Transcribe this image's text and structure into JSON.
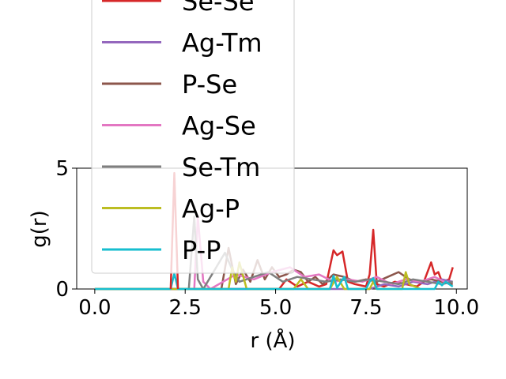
{
  "chart_data": {
    "type": "line",
    "title": "",
    "xlabel": "r (Å)",
    "ylabel": "g(r)",
    "xlim": [
      -0.5,
      10.3
    ],
    "ylim": [
      0,
      5
    ],
    "xticks": [
      "0.0",
      "2.5",
      "5.0",
      "7.5",
      "10.0"
    ],
    "xtick_values": [
      0,
      2.5,
      5,
      7.5,
      10
    ],
    "yticks": [
      "0",
      "5"
    ],
    "ytick_values": [
      0,
      5
    ],
    "grid": false,
    "legend_position": "upper-left (overflowing above plot)",
    "series": [
      {
        "name": "Se-Se",
        "color": "#d62728",
        "x": [
          0,
          5.1,
          5.3,
          5.6,
          5.9,
          6.2,
          6.4,
          6.6,
          6.7,
          6.85,
          7.0,
          7.2,
          7.5,
          7.6,
          7.7,
          7.8,
          8.0,
          8.3,
          8.6,
          8.9,
          9.1,
          9.3,
          9.4,
          9.5,
          9.6,
          9.8,
          9.9
        ],
        "y": [
          0,
          0,
          0.4,
          0.1,
          0.3,
          0.1,
          0.2,
          1.6,
          1.4,
          1.55,
          0.3,
          0.2,
          0.1,
          0.6,
          2.45,
          0.2,
          0.1,
          0.3,
          0.2,
          0.1,
          0.3,
          1.1,
          0.6,
          0.7,
          0.3,
          0.4,
          0.9
        ]
      },
      {
        "name": "Ag-Tm",
        "color": "#9467bd",
        "x": [
          0,
          7.6,
          8.0,
          8.4,
          8.8,
          9.2,
          9.6,
          9.9
        ],
        "y": [
          0,
          0,
          0.2,
          0.1,
          0.3,
          0.2,
          0.4,
          0.3
        ]
      },
      {
        "name": "P-Se",
        "color": "#8c564b",
        "x": [
          0,
          3.5,
          3.7,
          3.9,
          4.1,
          4.3,
          4.5,
          4.7,
          4.9,
          5.1,
          5.3,
          5.5,
          5.7,
          5.9,
          6.1,
          6.3,
          6.6,
          6.9,
          7.2,
          7.5,
          7.8,
          8.1,
          8.4,
          8.7,
          9.0,
          9.3,
          9.6,
          9.9
        ],
        "y": [
          0,
          0,
          1.7,
          0.2,
          0.8,
          0.3,
          1.2,
          0.4,
          0.9,
          0.5,
          0.6,
          0.8,
          0.7,
          0.3,
          0.5,
          0.2,
          0.6,
          0.5,
          0.3,
          0.4,
          0.3,
          0.5,
          0.7,
          0.4,
          0.3,
          0.4,
          0.3,
          0.2
        ]
      },
      {
        "name": "Ag-Se",
        "color": "#e377c2",
        "x": [
          0,
          2.75,
          2.85,
          3.0,
          3.2,
          3.9,
          4.4,
          4.9,
          5.4,
          5.8,
          6.2,
          6.6,
          7.0,
          7.4,
          7.8,
          8.2,
          8.6,
          9.0,
          9.4,
          9.8
        ],
        "y": [
          0,
          0,
          3.0,
          0.3,
          0.0,
          0.6,
          0.4,
          0.7,
          0.9,
          0.5,
          0.6,
          0.3,
          0.4,
          0.3,
          0.5,
          0.2,
          0.4,
          0.3,
          0.5,
          0.2
        ]
      },
      {
        "name": "Se-Tm",
        "color": "#7f7f7f",
        "x": [
          0,
          2.6,
          2.75,
          2.85,
          3.0,
          3.6,
          3.8,
          4.0,
          4.4,
          4.8,
          5.2,
          5.6,
          6.0,
          6.4,
          6.8,
          7.2,
          7.6,
          8.0,
          8.4,
          8.8,
          9.2,
          9.6,
          9.9
        ],
        "y": [
          0,
          0,
          3.0,
          0.4,
          0.0,
          1.5,
          0.8,
          0.3,
          0.5,
          0.7,
          0.3,
          0.5,
          0.4,
          0.3,
          0.4,
          0.3,
          0.4,
          0.3,
          0.2,
          0.4,
          0.3,
          0.2,
          0.3
        ]
      },
      {
        "name": "Ag-P",
        "color": "#bcbd22",
        "x": [
          0,
          3.7,
          3.8,
          3.9,
          4.0,
          4.2,
          5.5,
          5.7,
          5.9,
          6.5,
          6.7,
          6.9,
          7.6,
          7.7,
          7.8,
          8.5,
          8.6,
          8.7,
          9.0
        ],
        "y": [
          0,
          0,
          0.9,
          0.3,
          1.1,
          0.0,
          0,
          0.4,
          0.0,
          0,
          0.5,
          0.0,
          0,
          0.3,
          0.0,
          0,
          0.7,
          0.2,
          0
        ]
      },
      {
        "name": "P-P",
        "color": "#17becf",
        "x": [
          0,
          2.1,
          2.2,
          2.3,
          6.5,
          6.6,
          6.7,
          6.9,
          7.0,
          7.5,
          7.6,
          7.7,
          7.8,
          9.4,
          9.5,
          9.6,
          9.7,
          9.9
        ],
        "y": [
          0,
          0,
          0.65,
          0,
          0,
          0.55,
          0.05,
          0.5,
          0,
          0,
          0.3,
          0.45,
          0,
          0,
          0.3,
          0.15,
          0.3,
          0.1
        ]
      }
    ],
    "annotations": [
      {
        "series": "Se-Se",
        "note": "tall spike near r=2.2",
        "x": [
          2.1,
          2.2,
          2.3
        ],
        "y": [
          0,
          4.8,
          0
        ]
      }
    ]
  }
}
